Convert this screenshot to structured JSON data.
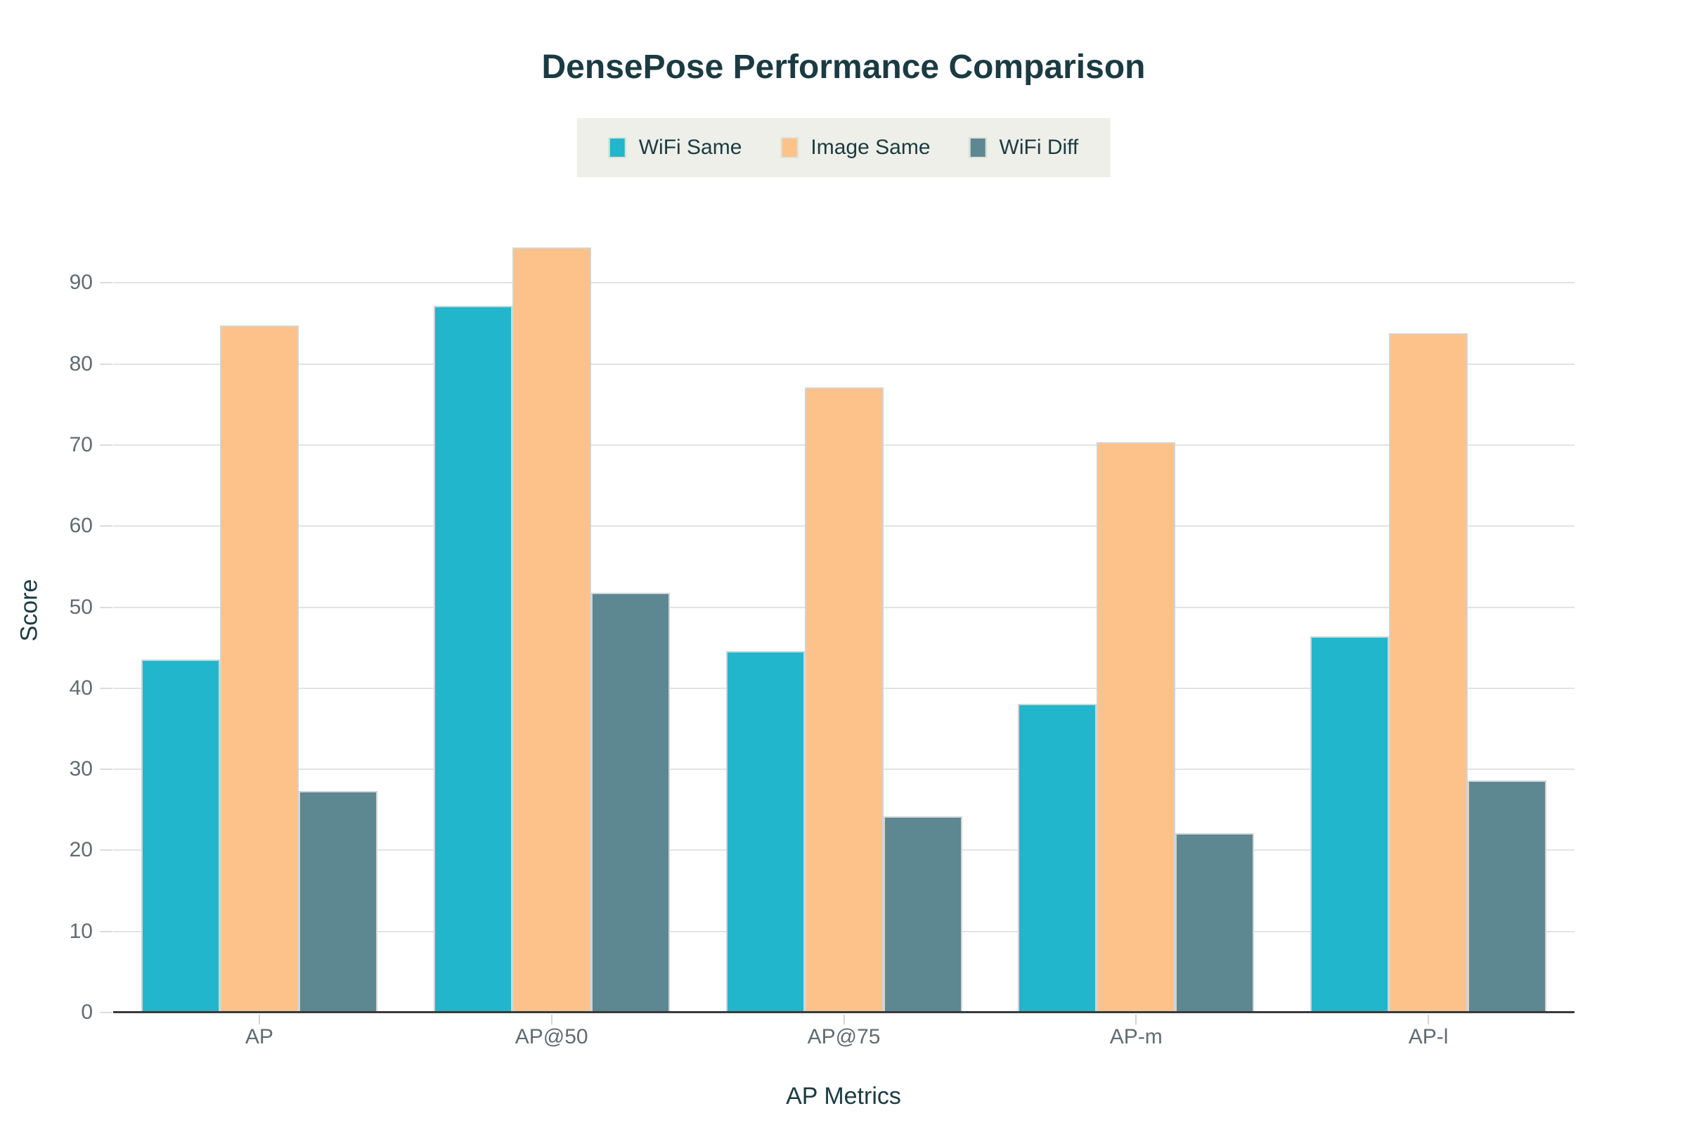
{
  "chart_data": {
    "type": "bar",
    "title": "DensePose Performance Comparison",
    "xlabel": "AP Metrics",
    "ylabel": "Score",
    "categories": [
      "AP",
      "AP@50",
      "AP@75",
      "AP-m",
      "AP-l"
    ],
    "series": [
      {
        "name": "WiFi Same",
        "color": "#21b6cb",
        "values": [
          43.5,
          87.2,
          44.6,
          38.1,
          46.4
        ]
      },
      {
        "name": "Image Same",
        "color": "#fdc289",
        "values": [
          84.7,
          94.4,
          77.1,
          70.3,
          83.8
        ]
      },
      {
        "name": "WiFi Diff",
        "color": "#5d8791",
        "values": [
          27.3,
          51.8,
          24.2,
          22.1,
          28.6
        ]
      }
    ],
    "ylim": [
      0,
      94.5
    ],
    "yticks": [
      0,
      10,
      20,
      30,
      40,
      50,
      60,
      70,
      80,
      90
    ],
    "grid": true,
    "legend_position": "top-center"
  },
  "colors": {
    "background": "#ffffff",
    "title_text": "#1b3b42",
    "tick_text": "#606b72",
    "gridline": "#e3e3e3",
    "axis_line": "#3a3a3a",
    "legend_background": "#edefe8",
    "bar_border": "#d2d4d4"
  }
}
